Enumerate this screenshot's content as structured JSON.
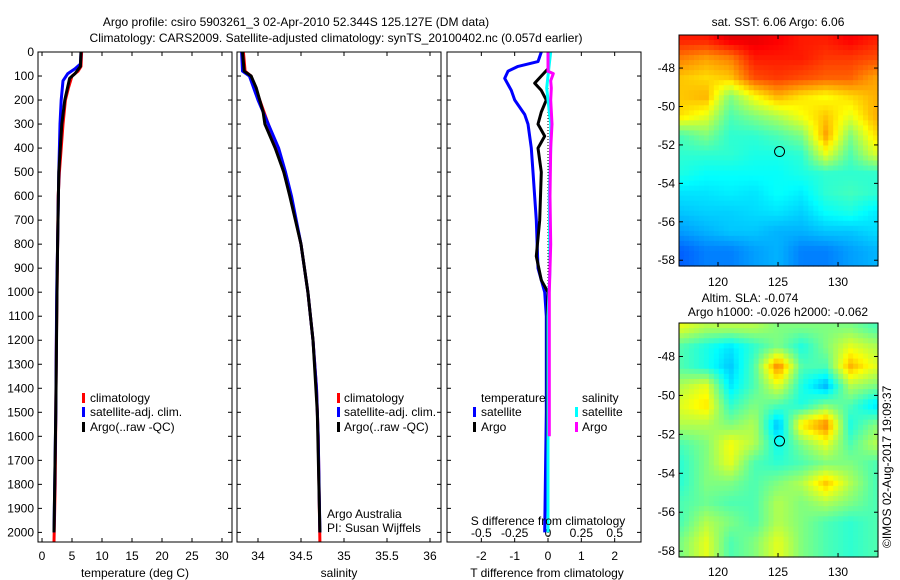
{
  "title": {
    "line1": "Argo profile: csiro 5903261_3 02-Apr-2010 52.344S 125.127E (DM data)",
    "line2": "Climatology: CARS2009. Satellite-adjusted climatology: synTS_20100402.nc (0.057d earlier)"
  },
  "credit": {
    "line1": "Argo Australia",
    "line2": "PI: Susan Wijffels",
    "stamp": "©IMOS 02-Aug-2017 19:09:37"
  },
  "colors": {
    "climatology": "#ff0000",
    "satellite": "#0000ff",
    "argo": "#000000",
    "sal_satellite": "#00ffff",
    "sal_argo": "#ff00ff"
  },
  "chart_data": [
    {
      "type": "line",
      "xlabel": "temperature (deg C)",
      "ylabel": "",
      "xlim": [
        -0.67,
        31.67
      ],
      "ylim": [
        2040,
        0
      ],
      "xticks": [
        "0",
        "5",
        "10",
        "15",
        "20",
        "25",
        "30"
      ],
      "xtick_values": [
        0,
        5,
        10,
        15,
        20,
        25,
        30
      ],
      "yticks": [
        "0",
        "100",
        "200",
        "300",
        "400",
        "500",
        "600",
        "700",
        "800",
        "900",
        "1000",
        "1100",
        "1200",
        "1300",
        "1400",
        "1500",
        "1600",
        "1700",
        "1800",
        "1900",
        "2000"
      ],
      "ytick_values": [
        0,
        100,
        200,
        300,
        400,
        500,
        600,
        700,
        800,
        900,
        1000,
        1100,
        1200,
        1300,
        1400,
        1500,
        1600,
        1700,
        1800,
        1900,
        2000
      ],
      "legend": [
        "climatology",
        "satellite-adj. clim.",
        "Argo(..raw -QC)"
      ],
      "series": [
        {
          "name": "climatology",
          "color": "#ff0000",
          "points": [
            [
              0,
              6.6
            ],
            [
              60,
              6.5
            ],
            [
              80,
              6.0
            ],
            [
              100,
              5.0
            ],
            [
              150,
              4.4
            ],
            [
              200,
              3.9
            ],
            [
              300,
              3.5
            ],
            [
              400,
              3.2
            ],
            [
              500,
              2.9
            ],
            [
              600,
              2.7
            ],
            [
              800,
              2.6
            ],
            [
              1000,
              2.5
            ],
            [
              1200,
              2.4
            ],
            [
              1500,
              2.3
            ],
            [
              1800,
              2.2
            ],
            [
              2040,
              2.0
            ]
          ]
        },
        {
          "name": "satellite-adj. clim.",
          "color": "#0000ff",
          "points": [
            [
              0,
              6.5
            ],
            [
              50,
              6.4
            ],
            [
              70,
              5.5
            ],
            [
              90,
              4.3
            ],
            [
              120,
              3.5
            ],
            [
              200,
              3.2
            ],
            [
              300,
              3.0
            ],
            [
              500,
              2.8
            ],
            [
              800,
              2.6
            ],
            [
              1000,
              2.45
            ],
            [
              1500,
              2.3
            ],
            [
              2000,
              2.0
            ]
          ]
        },
        {
          "name": "Argo(..raw -QC)",
          "color": "#000000",
          "points": [
            [
              0,
              6.5
            ],
            [
              60,
              6.4
            ],
            [
              90,
              5.5
            ],
            [
              110,
              4.6
            ],
            [
              200,
              3.8
            ],
            [
              300,
              3.3
            ],
            [
              500,
              2.8
            ],
            [
              800,
              2.6
            ],
            [
              1000,
              2.5
            ],
            [
              1500,
              2.3
            ],
            [
              2000,
              2.0
            ]
          ]
        }
      ]
    },
    {
      "type": "line",
      "xlabel": "salinity",
      "xlim": [
        33.756,
        36.128
      ],
      "ylim": [
        2040,
        0
      ],
      "xticks": [
        "34",
        "34.5",
        "35",
        "35.5",
        "36"
      ],
      "xtick_values": [
        34,
        34.5,
        35,
        35.5,
        36
      ],
      "legend": [
        "climatology",
        "satellite-adj. clim.",
        "Argo(..raw -QC)"
      ],
      "series": [
        {
          "name": "climatology",
          "color": "#ff0000",
          "points": [
            [
              0,
              33.83
            ],
            [
              80,
              33.85
            ],
            [
              100,
              33.92
            ],
            [
              200,
              34.02
            ],
            [
              300,
              34.12
            ],
            [
              400,
              34.22
            ],
            [
              500,
              34.3
            ],
            [
              600,
              34.38
            ],
            [
              700,
              34.44
            ],
            [
              800,
              34.5
            ],
            [
              1000,
              34.58
            ],
            [
              1200,
              34.64
            ],
            [
              1400,
              34.68
            ],
            [
              1600,
              34.7
            ],
            [
              2040,
              34.72
            ]
          ]
        },
        {
          "name": "satellite-adj. clim.",
          "color": "#0000ff",
          "points": [
            [
              0,
              33.81
            ],
            [
              80,
              33.82
            ],
            [
              100,
              33.9
            ],
            [
              200,
              34.0
            ],
            [
              300,
              34.12
            ],
            [
              400,
              34.24
            ],
            [
              500,
              34.32
            ],
            [
              600,
              34.39
            ],
            [
              800,
              34.5
            ],
            [
              1000,
              34.58
            ],
            [
              1200,
              34.64
            ],
            [
              1400,
              34.68
            ],
            [
              1600,
              34.7
            ],
            [
              2000,
              34.72
            ]
          ]
        },
        {
          "name": "Argo(..raw -QC)",
          "color": "#000000",
          "points": [
            [
              0,
              33.82
            ],
            [
              80,
              33.84
            ],
            [
              100,
              33.92
            ],
            [
              150,
              33.98
            ],
            [
              250,
              34.06
            ],
            [
              300,
              34.08
            ],
            [
              400,
              34.2
            ],
            [
              500,
              34.3
            ],
            [
              600,
              34.37
            ],
            [
              800,
              34.5
            ],
            [
              1000,
              34.58
            ],
            [
              1200,
              34.64
            ],
            [
              1500,
              34.69
            ],
            [
              2000,
              34.72
            ]
          ]
        }
      ]
    },
    {
      "type": "line",
      "xlabel": "T difference from climatology",
      "x2label": "S difference from climatology",
      "xlim": [
        -3.03,
        2.79
      ],
      "ylim": [
        2040,
        0
      ],
      "xticks": [
        "-2",
        "-1",
        "0",
        "1",
        "2"
      ],
      "xtick_values": [
        -2,
        -1,
        0,
        1,
        2
      ],
      "x2ticks": [
        "-0.5",
        "-0.25",
        "0",
        "0.25",
        "0.5"
      ],
      "x2tick_values": [
        -0.5,
        -0.25,
        0,
        0.25,
        0.5
      ],
      "legend": {
        "temperature": "temperature",
        "salinity": "salinity",
        "satellite": "satellite",
        "argo": "Argo"
      },
      "series": [
        {
          "name": "T satellite",
          "color": "#0000ff",
          "axis": "T",
          "points": [
            [
              0,
              -0.2
            ],
            [
              40,
              -0.3
            ],
            [
              60,
              -0.9
            ],
            [
              80,
              -1.2
            ],
            [
              110,
              -1.3
            ],
            [
              160,
              -1.1
            ],
            [
              200,
              -1.0
            ],
            [
              260,
              -0.7
            ],
            [
              300,
              -0.6
            ],
            [
              400,
              -0.5
            ],
            [
              500,
              -0.45
            ],
            [
              700,
              -0.35
            ],
            [
              900,
              -0.3
            ],
            [
              1000,
              -0.1
            ],
            [
              1100,
              -0.05
            ],
            [
              1500,
              -0.05
            ],
            [
              2000,
              -0.1
            ]
          ]
        },
        {
          "name": "T Argo",
          "color": "#000000",
          "axis": "T",
          "points": [
            [
              0,
              0
            ],
            [
              70,
              0
            ],
            [
              100,
              -0.2
            ],
            [
              130,
              -0.4
            ],
            [
              160,
              -0.2
            ],
            [
              200,
              -0.05
            ],
            [
              250,
              -0.2
            ],
            [
              300,
              -0.3
            ],
            [
              350,
              -0.1
            ],
            [
              400,
              -0.3
            ],
            [
              500,
              -0.2
            ],
            [
              700,
              -0.25
            ],
            [
              850,
              -0.35
            ],
            [
              950,
              -0.2
            ],
            [
              1000,
              0
            ],
            [
              1100,
              -0.02
            ],
            [
              1500,
              -0.02
            ],
            [
              1700,
              0
            ]
          ]
        },
        {
          "name": "S satellite",
          "color": "#00ffff",
          "axis": "S",
          "points": [
            [
              0,
              0.02
            ],
            [
              50,
              0.01
            ],
            [
              100,
              0.0
            ],
            [
              150,
              -0.01
            ],
            [
              200,
              0.0
            ],
            [
              250,
              0.01
            ],
            [
              300,
              0.02
            ],
            [
              400,
              0.02
            ],
            [
              600,
              0.01
            ],
            [
              900,
              0.015
            ],
            [
              1100,
              0.0
            ],
            [
              1500,
              0.0
            ],
            [
              2000,
              0.0
            ]
          ]
        },
        {
          "name": "S Argo",
          "color": "#ff00ff",
          "axis": "S",
          "points": [
            [
              0,
              0.0
            ],
            [
              80,
              0.0
            ],
            [
              90,
              0.04
            ],
            [
              120,
              0.02
            ],
            [
              150,
              0.025
            ],
            [
              200,
              0.02
            ],
            [
              300,
              0.03
            ],
            [
              400,
              0.02
            ],
            [
              600,
              0.015
            ],
            [
              800,
              0.02
            ],
            [
              1000,
              0.01
            ],
            [
              1600,
              0.01
            ]
          ]
        }
      ]
    },
    {
      "type": "heatmap",
      "title": "sat. SST: 6.06 Argo: 6.06",
      "xlim": [
        116.75,
        133.33
      ],
      "ylim": [
        -58.3,
        -46.28
      ],
      "xticks": [
        "120",
        "125",
        "130"
      ],
      "xtick_values": [
        120,
        125,
        130
      ],
      "yticks": [
        "-48",
        "-50",
        "-52",
        "-54",
        "-56",
        "-58"
      ],
      "ytick_values": [
        -48,
        -50,
        -52,
        -54,
        -56,
        -58
      ],
      "marker": [
        125.127,
        -52.344
      ],
      "grid_lon": [
        117,
        119,
        121,
        123,
        125,
        127,
        129,
        131,
        133
      ],
      "grid_lat": [
        -46.5,
        -47.5,
        -48.5,
        -49.5,
        -50.5,
        -51.5,
        -52.5,
        -53.5,
        -54.5,
        -55.5,
        -56.5,
        -57.5
      ],
      "values_normalized": [
        [
          0.85,
          0.85,
          0.9,
          0.9,
          0.88,
          0.85,
          0.85,
          0.88,
          0.85
        ],
        [
          0.75,
          0.72,
          0.75,
          0.85,
          0.85,
          0.85,
          0.82,
          0.82,
          0.8
        ],
        [
          0.68,
          0.66,
          0.68,
          0.8,
          0.82,
          0.8,
          0.78,
          0.78,
          0.72
        ],
        [
          0.68,
          0.7,
          0.5,
          0.62,
          0.7,
          0.65,
          0.62,
          0.66,
          0.7
        ],
        [
          0.65,
          0.6,
          0.45,
          0.5,
          0.55,
          0.62,
          0.68,
          0.6,
          0.7
        ],
        [
          0.45,
          0.5,
          0.42,
          0.42,
          0.45,
          0.5,
          0.72,
          0.5,
          0.65
        ],
        [
          0.42,
          0.42,
          0.42,
          0.4,
          0.4,
          0.42,
          0.6,
          0.45,
          0.58
        ],
        [
          0.4,
          0.38,
          0.38,
          0.38,
          0.38,
          0.4,
          0.42,
          0.42,
          0.42
        ],
        [
          0.35,
          0.35,
          0.36,
          0.35,
          0.38,
          0.36,
          0.42,
          0.44,
          0.42
        ],
        [
          0.32,
          0.33,
          0.33,
          0.34,
          0.35,
          0.33,
          0.38,
          0.4,
          0.36
        ],
        [
          0.28,
          0.3,
          0.32,
          0.32,
          0.3,
          0.3,
          0.32,
          0.32,
          0.34
        ],
        [
          0.22,
          0.25,
          0.25,
          0.28,
          0.3,
          0.25,
          0.25,
          0.28,
          0.3
        ]
      ]
    },
    {
      "type": "heatmap",
      "title": "Altim. SLA: -0.074",
      "subtitle": "Argo h1000: -0.026 h2000: -0.062",
      "xlim": [
        116.75,
        133.33
      ],
      "ylim": [
        -58.3,
        -46.28
      ],
      "xticks": [
        "120",
        "125",
        "130"
      ],
      "xtick_values": [
        120,
        125,
        130
      ],
      "yticks": [
        "-48",
        "-50",
        "-52",
        "-54",
        "-56",
        "-58"
      ],
      "ytick_values": [
        -48,
        -50,
        -52,
        -54,
        -56,
        -58
      ],
      "marker": [
        125.127,
        -52.344
      ],
      "grid_lon": [
        117,
        119,
        121,
        123,
        125,
        127,
        129,
        131,
        133
      ],
      "grid_lat": [
        -46.5,
        -47.5,
        -48.5,
        -49.5,
        -50.5,
        -51.5,
        -52.5,
        -53.5,
        -54.5,
        -55.5,
        -56.5,
        -57.5
      ],
      "values_normalized": [
        [
          0.6,
          0.55,
          0.55,
          0.55,
          0.5,
          0.5,
          0.5,
          0.5,
          0.45
        ],
        [
          0.45,
          0.4,
          0.35,
          0.42,
          0.5,
          0.4,
          0.5,
          0.6,
          0.55
        ],
        [
          0.45,
          0.4,
          0.32,
          0.45,
          0.75,
          0.45,
          0.45,
          0.7,
          0.6
        ],
        [
          0.55,
          0.6,
          0.35,
          0.45,
          0.6,
          0.4,
          0.3,
          0.55,
          0.5
        ],
        [
          0.6,
          0.65,
          0.42,
          0.5,
          0.45,
          0.4,
          0.5,
          0.45,
          0.35
        ],
        [
          0.55,
          0.55,
          0.5,
          0.55,
          0.3,
          0.65,
          0.75,
          0.4,
          0.5
        ],
        [
          0.45,
          0.5,
          0.62,
          0.55,
          0.38,
          0.5,
          0.6,
          0.45,
          0.55
        ],
        [
          0.42,
          0.5,
          0.6,
          0.45,
          0.42,
          0.45,
          0.5,
          0.5,
          0.45
        ],
        [
          0.42,
          0.5,
          0.5,
          0.45,
          0.5,
          0.55,
          0.68,
          0.55,
          0.45
        ],
        [
          0.45,
          0.48,
          0.45,
          0.45,
          0.55,
          0.5,
          0.55,
          0.5,
          0.45
        ],
        [
          0.45,
          0.55,
          0.5,
          0.45,
          0.55,
          0.5,
          0.45,
          0.42,
          0.45
        ],
        [
          0.5,
          0.6,
          0.45,
          0.5,
          0.6,
          0.5,
          0.45,
          0.42,
          0.45
        ]
      ]
    }
  ]
}
